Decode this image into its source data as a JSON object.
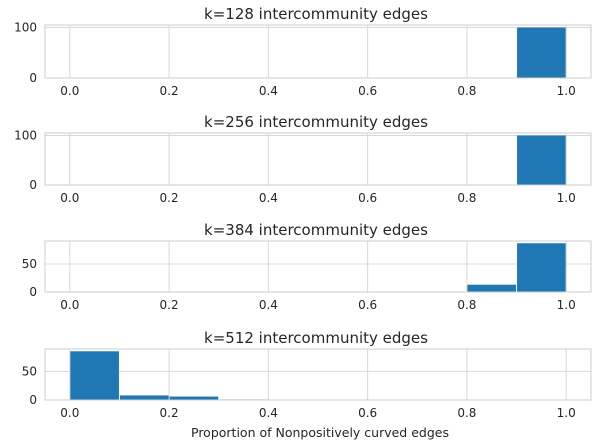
{
  "chart_data": [
    {
      "type": "bar",
      "title": "k=128 intercommunity edges",
      "xlabel": "",
      "ylabel": "",
      "bin_edges": [
        0.0,
        0.1,
        0.2,
        0.3,
        0.4,
        0.5,
        0.6,
        0.7,
        0.8,
        0.9,
        1.0
      ],
      "values": [
        0,
        0,
        0,
        0,
        0,
        0,
        0,
        0,
        0,
        100
      ],
      "xlim": [
        -0.05,
        1.05
      ],
      "ylim": [
        0,
        105
      ],
      "xticks": [
        "0.0",
        "0.2",
        "0.4",
        "0.6",
        "0.8",
        "1.0"
      ],
      "yticks": [
        "0",
        "100"
      ],
      "grid": true,
      "color": "#1f77b4"
    },
    {
      "type": "bar",
      "title": "k=256 intercommunity edges",
      "xlabel": "",
      "ylabel": "",
      "bin_edges": [
        0.0,
        0.1,
        0.2,
        0.3,
        0.4,
        0.5,
        0.6,
        0.7,
        0.8,
        0.9,
        1.0
      ],
      "values": [
        0,
        0,
        0,
        0,
        0,
        0,
        0,
        0,
        0,
        100
      ],
      "xlim": [
        -0.05,
        1.05
      ],
      "ylim": [
        0,
        105
      ],
      "xticks": [
        "0.0",
        "0.2",
        "0.4",
        "0.6",
        "0.8",
        "1.0"
      ],
      "yticks": [
        "0",
        "100"
      ],
      "grid": true,
      "color": "#1f77b4"
    },
    {
      "type": "bar",
      "title": "k=384 intercommunity edges",
      "xlabel": "",
      "ylabel": "",
      "bin_edges": [
        0.0,
        0.1,
        0.2,
        0.3,
        0.4,
        0.5,
        0.6,
        0.7,
        0.8,
        0.9,
        1.0
      ],
      "values": [
        0,
        0,
        0,
        0,
        0,
        0,
        0,
        0,
        13,
        87
      ],
      "xlim": [
        -0.05,
        1.05
      ],
      "ylim": [
        0,
        91
      ],
      "xticks": [
        "0.0",
        "0.2",
        "0.4",
        "0.6",
        "0.8",
        "1.0"
      ],
      "yticks": [
        "0",
        "50"
      ],
      "grid": true,
      "color": "#1f77b4"
    },
    {
      "type": "bar",
      "title": "k=512 intercommunity edges",
      "xlabel": "Proportion of Nonpositively curved edges",
      "ylabel": "",
      "bin_edges": [
        0.0,
        0.1,
        0.2,
        0.3,
        0.4,
        0.5,
        0.6,
        0.7,
        0.8,
        0.9,
        1.0
      ],
      "values": [
        85,
        8,
        6,
        1,
        0,
        0,
        0,
        0,
        0,
        0
      ],
      "xlim": [
        -0.05,
        1.05
      ],
      "ylim": [
        0,
        89
      ],
      "xticks": [
        "0.0",
        "0.2",
        "0.4",
        "0.6",
        "0.8",
        "1.0"
      ],
      "yticks": [
        "0",
        "50"
      ],
      "grid": true,
      "color": "#1f77b4"
    }
  ]
}
